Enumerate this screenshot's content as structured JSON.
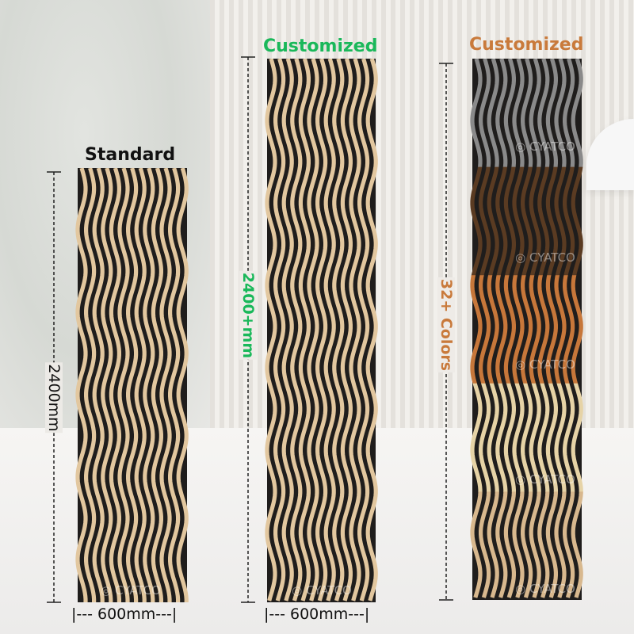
{
  "colors": {
    "green": "#1ab85a",
    "orange": "#c97a3b",
    "black": "#111111",
    "slat_light": "#e2c79f",
    "slat_dark": "#1f1d1c"
  },
  "panels": [
    {
      "heading": "Standard",
      "heading_color": "#111111",
      "height_label": "2400mm",
      "width_label": "|--- 600mm---|"
    },
    {
      "heading": "Customized",
      "heading_color": "#1ab85a",
      "height_label": "2400+mm",
      "width_label": "|--- 600mm---|"
    },
    {
      "heading": "Customized",
      "heading_color": "#c97a3b",
      "height_label": "32+ Colors",
      "color_bands": [
        "#8a8a8a",
        "#5a3b22",
        "#c7773a",
        "#e6d3a6",
        "#d8b88e"
      ]
    }
  ],
  "watermark": "CYATCO"
}
